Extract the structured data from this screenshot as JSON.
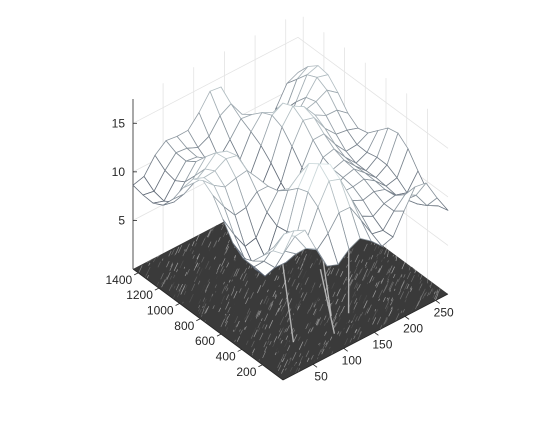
{
  "chart_data": {
    "type": "surface",
    "title": "",
    "xlabel": "",
    "ylabel": "",
    "zlabel": "",
    "grid": true,
    "colormap": "bone",
    "x_ticks": [
      50,
      100,
      150,
      200,
      250
    ],
    "y_ticks": [
      200,
      400,
      600,
      800,
      1000,
      1200,
      1400
    ],
    "z_ticks": [
      5,
      10,
      15
    ],
    "xlim": [
      1,
      270
    ],
    "ylim": [
      1,
      1450
    ],
    "zlim": [
      0,
      17.5
    ],
    "grid_size": {
      "nx": 16,
      "ny": 16
    },
    "z_range": [
      5,
      17
    ],
    "floor_image": "grayscale texture image projected on the z=0 plane"
  }
}
